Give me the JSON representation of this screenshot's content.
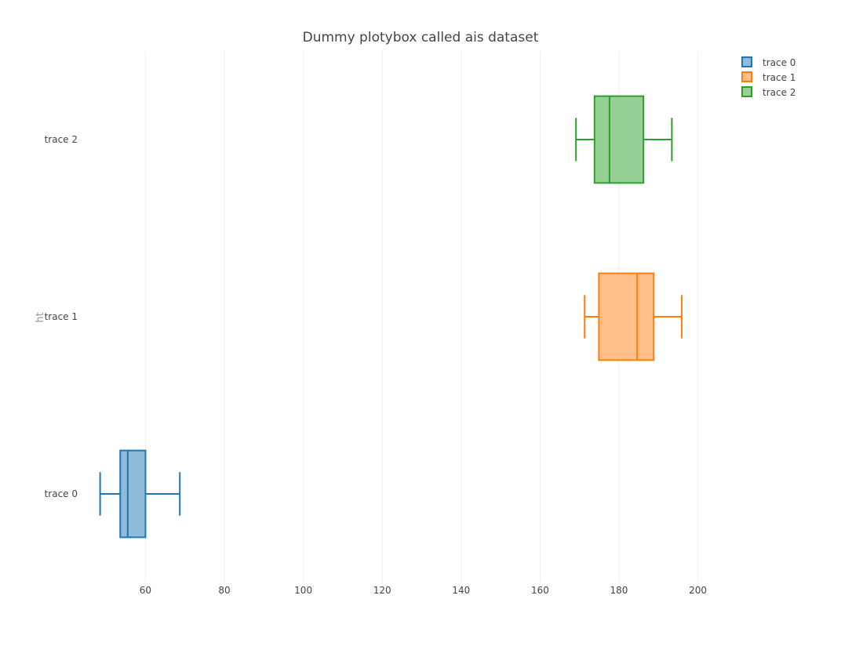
{
  "chart_data": {
    "type": "box",
    "orientation": "horizontal",
    "title": "Dummy plotybox called ais dataset",
    "xlabel": "",
    "ylabel": "ht",
    "xlim": [
      45,
      214
    ],
    "x_ticks": [
      60,
      80,
      100,
      120,
      140,
      160,
      180,
      200
    ],
    "grid": true,
    "legend_position": "top-right",
    "categories": [
      "trace 0",
      "trace 1",
      "trace 2"
    ],
    "series": [
      {
        "name": "trace 0",
        "color": "#1f77b4",
        "fill": "#8fbbdb",
        "min": 48.5,
        "q1": 53.6,
        "median": 55.5,
        "q3": 60.0,
        "max": 68.7
      },
      {
        "name": "trace 1",
        "color": "#ff7f0e",
        "fill": "#ffbf87",
        "min": 171.3,
        "q1": 174.9,
        "median": 184.6,
        "q3": 188.8,
        "max": 195.9
      },
      {
        "name": "trace 2",
        "color": "#2ca02c",
        "fill": "#96d096",
        "min": 169.1,
        "q1": 173.8,
        "median": 177.6,
        "q3": 186.2,
        "max": 193.4
      }
    ]
  }
}
